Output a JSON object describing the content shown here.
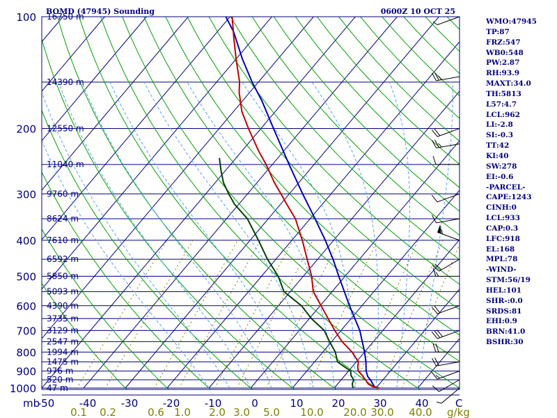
{
  "header": {
    "station": "BOMD (47945) Sounding",
    "time": "0600Z 10 OCT 25"
  },
  "colors": {
    "axes": "#000080",
    "isotherm": "#000080",
    "dry_adiabat": "#00a000",
    "moist_adiabat": "#50a0ff",
    "mixing_ratio": "#808000",
    "temperature": "#c00000",
    "dewpoint": "#004000",
    "parcel": "#0000c0",
    "wind": "#000000",
    "label": "#000080"
  },
  "chart_data": {
    "type": "skew-t log-p sounding",
    "title": "BOMD (47945) Sounding",
    "valid_time": "0600Z 10 OCT 25",
    "pressure_axis": {
      "unit": "mb",
      "range": [
        1000,
        100
      ],
      "ticks": [
        "100",
        "200",
        "300",
        "400",
        "500",
        "600",
        "700",
        "800",
        "900",
        "1000"
      ]
    },
    "temperature_axis": {
      "unit": "C",
      "range": [
        -50,
        50
      ],
      "ticks": [
        "-50",
        "-40",
        "-30",
        "-20",
        "-10",
        "0",
        "10",
        "20",
        "30",
        "40"
      ],
      "unit_label": "C"
    },
    "mb_label": "mb",
    "mixing_ratio_axis": {
      "unit": "g/kg",
      "ticks": [
        "0.1",
        "0.2",
        "0.6",
        "1.0",
        "2.0",
        "3.0",
        "5.0",
        "10.0",
        "20.0",
        "30.0",
        "40.0"
      ],
      "unit_label": "g/kg"
    },
    "height_labels": [
      {
        "p": 100,
        "label": "16750 m"
      },
      {
        "p": 150,
        "label": "14390 m"
      },
      {
        "p": 200,
        "label": "12550 m"
      },
      {
        "p": 250,
        "label": "11040 m"
      },
      {
        "p": 300,
        "label": "9760 m"
      },
      {
        "p": 350,
        "label": "8624 m"
      },
      {
        "p": 400,
        "label": "7610 m"
      },
      {
        "p": 450,
        "label": "6592 m"
      },
      {
        "p": 500,
        "label": "5850 m"
      },
      {
        "p": 550,
        "label": "5093 m"
      },
      {
        "p": 600,
        "label": "4390 m"
      },
      {
        "p": 650,
        "label": "3735 m"
      },
      {
        "p": 700,
        "label": "3129 m"
      },
      {
        "p": 750,
        "label": "2547 m"
      },
      {
        "p": 800,
        "label": "1994 m"
      },
      {
        "p": 850,
        "label": "1475 m"
      },
      {
        "p": 900,
        "label": "976 m"
      },
      {
        "p": 950,
        "label": "520 m"
      },
      {
        "p": 1000,
        "label": "47 m"
      }
    ],
    "temperature": [
      [
        1000,
        30.8
      ],
      [
        990,
        28.8
      ],
      [
        975,
        27.3
      ],
      [
        950,
        25.8
      ],
      [
        925,
        24.2
      ],
      [
        900,
        22.3
      ],
      [
        875,
        21.3
      ],
      [
        850,
        20.5
      ],
      [
        800,
        17.0
      ],
      [
        750,
        12.5
      ],
      [
        700,
        8.5
      ],
      [
        650,
        4.5
      ],
      [
        600,
        0.2
      ],
      [
        550,
        -4.5
      ],
      [
        500,
        -8.0
      ],
      [
        450,
        -12.5
      ],
      [
        400,
        -17.5
      ],
      [
        350,
        -23.5
      ],
      [
        320,
        -28.5
      ],
      [
        300,
        -32.0
      ],
      [
        280,
        -35.8
      ],
      [
        250,
        -41.5
      ],
      [
        230,
        -46.0
      ],
      [
        200,
        -53.0
      ],
      [
        180,
        -58.0
      ],
      [
        160,
        -62.5
      ],
      [
        150,
        -64.5
      ],
      [
        130,
        -70.0
      ],
      [
        115,
        -74.5
      ],
      [
        100,
        -79.5
      ]
    ],
    "dewpoint": [
      [
        1000,
        24.5
      ],
      [
        975,
        23.5
      ],
      [
        950,
        23.0
      ],
      [
        925,
        21.5
      ],
      [
        900,
        20.5
      ],
      [
        875,
        18.0
      ],
      [
        850,
        15.5
      ],
      [
        800,
        13.0
      ],
      [
        750,
        9.5
      ],
      [
        700,
        6.0
      ],
      [
        650,
        0.5
      ],
      [
        600,
        -4.5
      ],
      [
        550,
        -11.5
      ],
      [
        500,
        -16.0
      ],
      [
        450,
        -22.0
      ],
      [
        400,
        -28.0
      ],
      [
        350,
        -35.0
      ],
      [
        320,
        -41.0
      ],
      [
        300,
        -44.5
      ],
      [
        280,
        -48.0
      ],
      [
        260,
        -51.0
      ],
      [
        240,
        -54.0
      ]
    ],
    "parcel": [
      [
        1000,
        29.8
      ],
      [
        950,
        27.0
      ],
      [
        933,
        25.8
      ],
      [
        900,
        24.2
      ],
      [
        850,
        22.3
      ],
      [
        800,
        20.0
      ],
      [
        700,
        14.5
      ],
      [
        600,
        7.0
      ],
      [
        500,
        -1.5
      ],
      [
        450,
        -6.3
      ],
      [
        400,
        -12.0
      ],
      [
        350,
        -18.8
      ],
      [
        300,
        -26.8
      ],
      [
        250,
        -36.0
      ],
      [
        200,
        -47.0
      ],
      [
        168,
        -55.5
      ],
      [
        150,
        -61.5
      ],
      [
        130,
        -68.5
      ],
      [
        110,
        -76.0
      ],
      [
        100,
        -81.0
      ]
    ],
    "wind_barbs": [
      {
        "p": 100,
        "dir": 250,
        "spd": 5
      },
      {
        "p": 145,
        "dir": 260,
        "spd": 25
      },
      {
        "p": 200,
        "dir": 250,
        "spd": 20
      },
      {
        "p": 220,
        "dir": 260,
        "spd": 25
      },
      {
        "p": 250,
        "dir": 270,
        "spd": 10
      },
      {
        "p": 300,
        "dir": 250,
        "spd": 10
      },
      {
        "p": 350,
        "dir": 260,
        "spd": 10
      },
      {
        "p": 400,
        "dir": 290,
        "spd": 55
      },
      {
        "p": 450,
        "dir": 240,
        "spd": 20
      },
      {
        "p": 500,
        "dir": 270,
        "spd": 15
      },
      {
        "p": 600,
        "dir": 250,
        "spd": 20
      },
      {
        "p": 700,
        "dir": 250,
        "spd": 30
      },
      {
        "p": 800,
        "dir": 270,
        "spd": 20
      },
      {
        "p": 850,
        "dir": 260,
        "spd": 20
      },
      {
        "p": 900,
        "dir": 250,
        "spd": 15
      },
      {
        "p": 950,
        "dir": 240,
        "spd": 10
      },
      {
        "p": 1000,
        "dir": 230,
        "spd": 5
      }
    ],
    "indices": [
      "WMO:47945",
      "TP:87",
      "FRZ:547",
      "WB0:548",
      "PW:2.87",
      "RH:93.9",
      "MAXT:34.0",
      "TH:5813",
      "L57:4.7",
      "LCL:962",
      "LI:-2.8",
      "SI:-0.3",
      "TT:42",
      "KI:40",
      "SW:278",
      "EI:-0.6",
      "-PARCEL-",
      "CAPE:1243",
      "CINH:0",
      "LCL:933",
      "CAP:0.3",
      "LFC:918",
      "EL:168",
      "MPL:78",
      "-WIND-",
      "STM:56/19",
      "HEL:101",
      "SHR-:0.0",
      "SRDS:81",
      "EHI:0.9",
      "BRN:41.0",
      "BSHR:30"
    ]
  }
}
